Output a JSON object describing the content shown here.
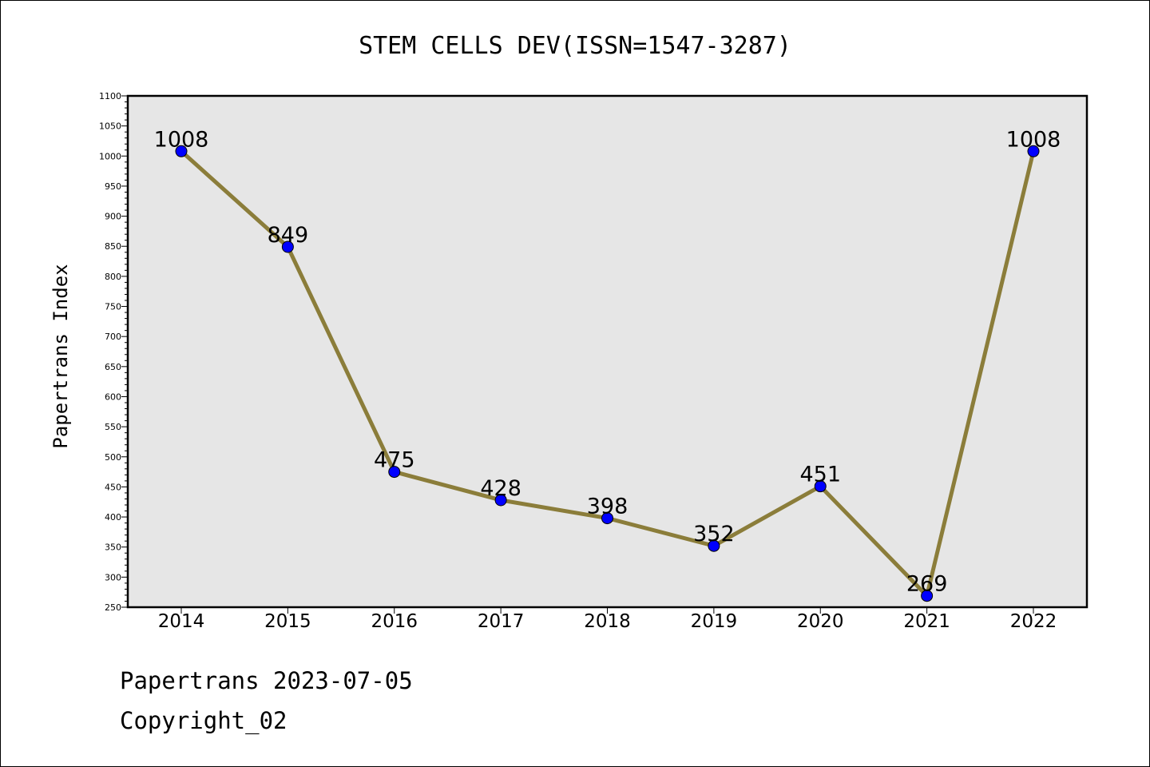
{
  "footer": {
    "line1": "Papertrans 2023-07-05",
    "line2": "Copyright_02"
  },
  "chart_data": {
    "type": "line",
    "title": "STEM CELLS DEV(ISSN=1547-3287)",
    "xlabel": "",
    "ylabel": "Papertrans Index",
    "categories": [
      "2014",
      "2015",
      "2016",
      "2017",
      "2018",
      "2019",
      "2020",
      "2021",
      "2022"
    ],
    "series": [
      {
        "values": [
          1008,
          849,
          475,
          428,
          398,
          352,
          451,
          269,
          1008
        ]
      }
    ],
    "ylim": [
      250,
      1100
    ],
    "yticks": [
      "250",
      "300",
      "350",
      "400",
      "450",
      "500",
      "550",
      "600",
      "650",
      "700",
      "750",
      "800",
      "850",
      "900",
      "950",
      "1000",
      "1050",
      "1100"
    ],
    "grid": false,
    "legend": "none",
    "colors": {
      "line": "#8B7D3A",
      "marker": "#0000FF",
      "plot_bg": "#E6E6E6"
    }
  }
}
